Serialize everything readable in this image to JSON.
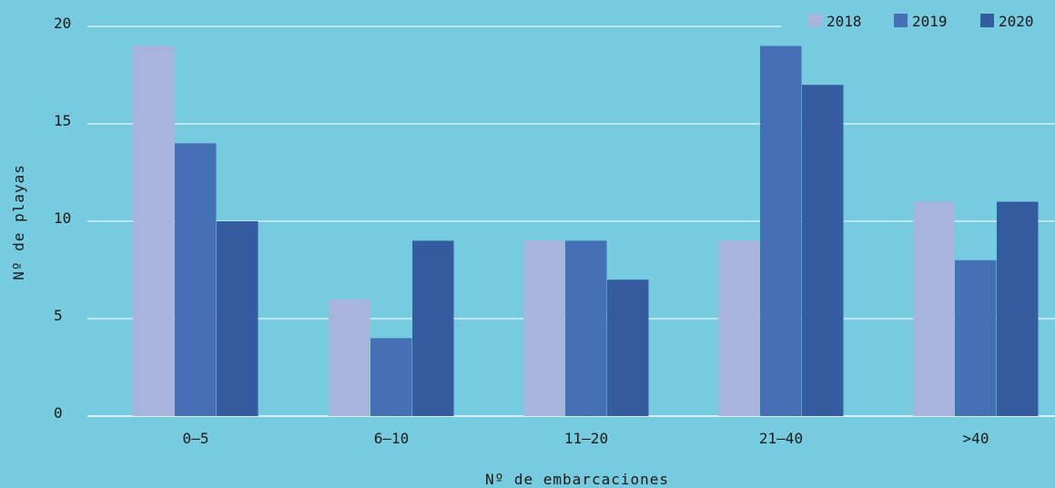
{
  "chart_data": {
    "type": "bar",
    "categories": [
      "0–5",
      "6–10",
      "11–20",
      "21–40",
      ">40"
    ],
    "series": [
      {
        "name": "2018",
        "values": [
          19,
          6,
          9,
          9,
          11
        ],
        "color": "#a9b4dc"
      },
      {
        "name": "2019",
        "values": [
          14,
          4,
          9,
          19,
          8
        ],
        "color": "#4670b6"
      },
      {
        "name": "2020",
        "values": [
          10,
          9,
          7,
          17,
          11
        ],
        "color": "#355ba0"
      }
    ],
    "xlabel": "Nº de embarcaciones",
    "ylabel": "Nº de playas",
    "ylim": [
      0,
      20
    ],
    "yticks": [
      0,
      5,
      10,
      15,
      20
    ],
    "grid": true,
    "legend_position": "top-right"
  }
}
